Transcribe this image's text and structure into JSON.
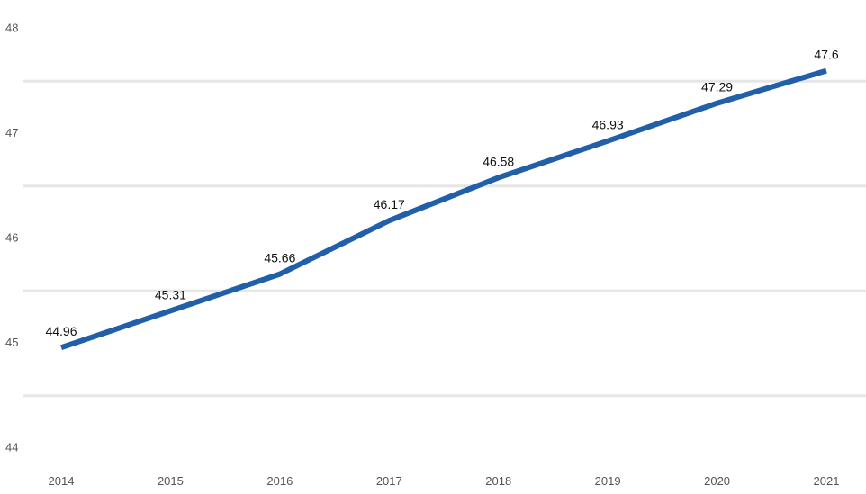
{
  "chart_data": {
    "type": "line",
    "title": "",
    "xlabel": "",
    "ylabel": "",
    "x": [
      2014,
      2015,
      2016,
      2017,
      2018,
      2019,
      2020,
      2021
    ],
    "series": [
      {
        "values": [
          44.96,
          45.31,
          45.66,
          46.17,
          46.58,
          46.93,
          47.29,
          47.6
        ],
        "labels": [
          "44.96",
          "45.31",
          "45.66",
          "46.17",
          "46.58",
          "46.93",
          "47.29",
          "47.6"
        ],
        "color": "#2160a8"
      }
    ],
    "x_tick_labels": [
      "2014",
      "2015",
      "2016",
      "2017",
      "2018",
      "2019",
      "2020",
      "2021"
    ],
    "y_ticks": [
      44,
      45,
      46,
      47,
      48
    ],
    "y_tick_labels": [
      "44",
      "45",
      "46",
      "47",
      "48"
    ],
    "gridlines_at": [
      44.5,
      45.5,
      46.5,
      47.5
    ],
    "ylim": [
      44,
      48
    ],
    "grid": true,
    "legend": "none",
    "gridline_color": "#e6e6e6"
  }
}
